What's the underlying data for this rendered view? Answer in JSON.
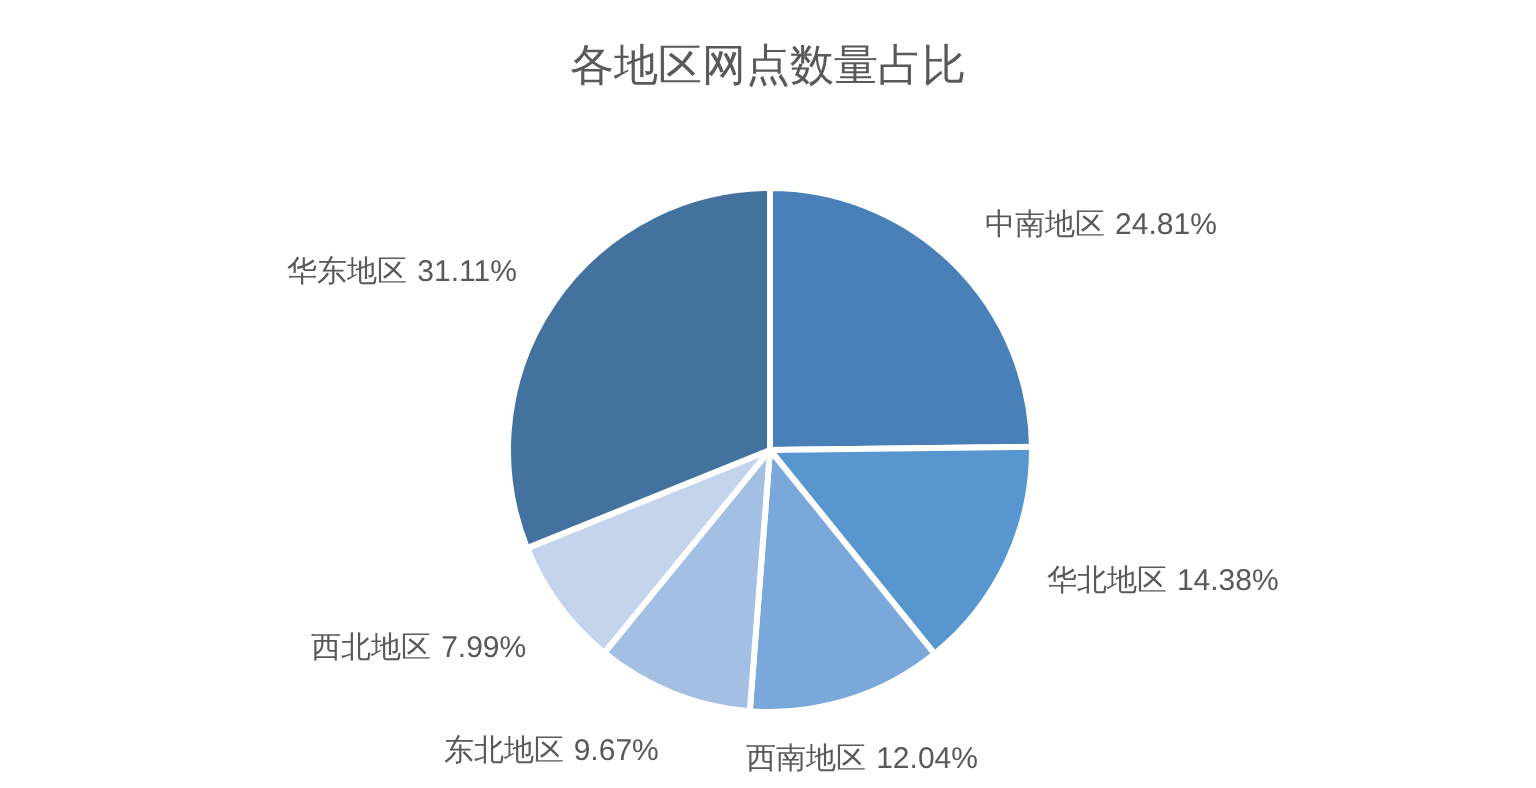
{
  "chart_data": {
    "type": "pie",
    "title": "各地区网点数量占比",
    "categories": [
      "中南地区",
      "华北地区",
      "西南地区",
      "东北地区",
      "西北地区",
      "华东地区"
    ],
    "values": [
      24.81,
      14.38,
      12.04,
      9.67,
      7.99,
      31.11
    ],
    "value_labels": [
      "24.81%",
      "14.38%",
      "12.04%",
      "9.67%",
      "7.99%",
      "31.11%"
    ],
    "colors": [
      "#4a80b8",
      "#5796cf",
      "#7aa8da",
      "#a3bfe4",
      "#c3d4ec",
      "#43729f"
    ]
  }
}
